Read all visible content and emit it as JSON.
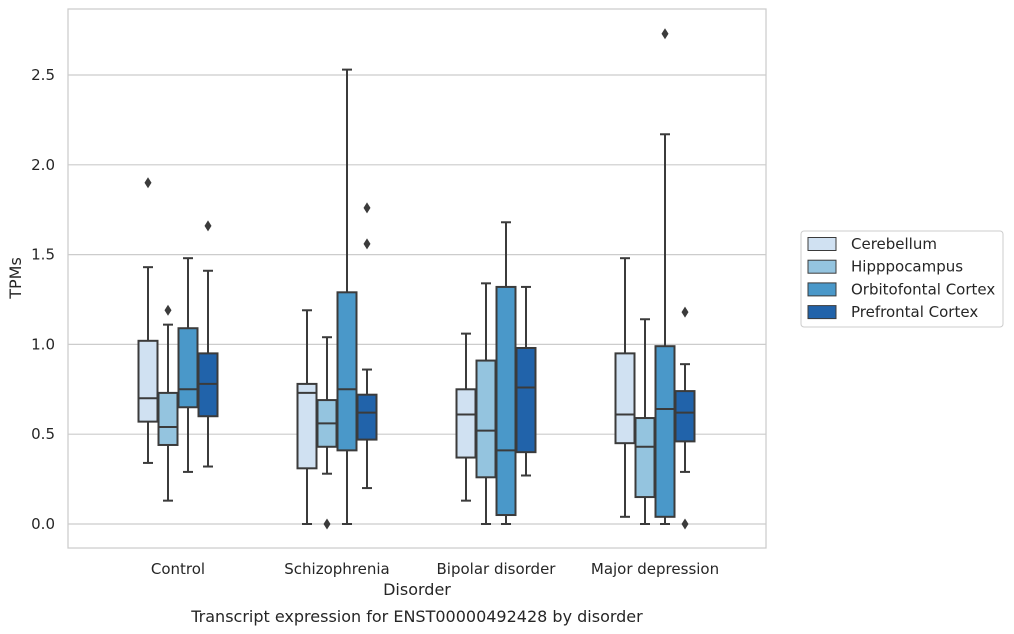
{
  "chart_data": {
    "type": "box",
    "caption": "Transcript expression for ENST00000492428 by disorder",
    "xlabel": "Disorder",
    "ylabel": "TPMs",
    "ylim": [
      -0.13,
      2.87
    ],
    "yticks": [
      0.0,
      0.5,
      1.0,
      1.5,
      2.0,
      2.5
    ],
    "ytick_labels": [
      "0.0",
      "0.5",
      "1.0",
      "1.5",
      "2.0",
      "2.5"
    ],
    "grid": "horizontal",
    "legend_position": "outside-right",
    "categories": [
      "Control",
      "Schizophrenia",
      "Bipolar disorder",
      "Major depression"
    ],
    "series": [
      {
        "name": "Cerebellum",
        "color": "#d0e1f2",
        "boxes": [
          {
            "whisker_low": 0.34,
            "q1": 0.57,
            "median": 0.7,
            "q3": 1.02,
            "whisker_high": 1.43,
            "outliers": [
              1.9
            ]
          },
          {
            "whisker_low": 0.0,
            "q1": 0.31,
            "median": 0.73,
            "q3": 0.78,
            "whisker_high": 1.19,
            "outliers": []
          },
          {
            "whisker_low": 0.13,
            "q1": 0.37,
            "median": 0.61,
            "q3": 0.75,
            "whisker_high": 1.06,
            "outliers": []
          },
          {
            "whisker_low": 0.04,
            "q1": 0.45,
            "median": 0.61,
            "q3": 0.95,
            "whisker_high": 1.48,
            "outliers": []
          }
        ]
      },
      {
        "name": "Hipppocampus",
        "color": "#94c4df",
        "boxes": [
          {
            "whisker_low": 0.13,
            "q1": 0.44,
            "median": 0.54,
            "q3": 0.73,
            "whisker_high": 1.11,
            "outliers": [
              1.19
            ]
          },
          {
            "whisker_low": 0.28,
            "q1": 0.43,
            "median": 0.56,
            "q3": 0.69,
            "whisker_high": 1.04,
            "outliers": [
              0.0
            ]
          },
          {
            "whisker_low": 0.0,
            "q1": 0.26,
            "median": 0.52,
            "q3": 0.91,
            "whisker_high": 1.34,
            "outliers": []
          },
          {
            "whisker_low": 0.0,
            "q1": 0.15,
            "median": 0.43,
            "q3": 0.59,
            "whisker_high": 1.14,
            "outliers": []
          }
        ]
      },
      {
        "name": "Orbitofontal Cortex",
        "color": "#4a98c9",
        "boxes": [
          {
            "whisker_low": 0.29,
            "q1": 0.65,
            "median": 0.75,
            "q3": 1.09,
            "whisker_high": 1.48,
            "outliers": []
          },
          {
            "whisker_low": 0.0,
            "q1": 0.41,
            "median": 0.75,
            "q3": 1.29,
            "whisker_high": 2.53,
            "outliers": []
          },
          {
            "whisker_low": 0.0,
            "q1": 0.05,
            "median": 0.41,
            "q3": 1.32,
            "whisker_high": 1.68,
            "outliers": []
          },
          {
            "whisker_low": 0.0,
            "q1": 0.04,
            "median": 0.64,
            "q3": 0.99,
            "whisker_high": 2.17,
            "outliers": [
              2.73
            ]
          }
        ]
      },
      {
        "name": "Prefrontal Cortex",
        "color": "#2163aa",
        "boxes": [
          {
            "whisker_low": 0.32,
            "q1": 0.6,
            "median": 0.78,
            "q3": 0.95,
            "whisker_high": 1.41,
            "outliers": [
              1.66
            ]
          },
          {
            "whisker_low": 0.2,
            "q1": 0.47,
            "median": 0.62,
            "q3": 0.72,
            "whisker_high": 0.86,
            "outliers": [
              1.56,
              1.76
            ]
          },
          {
            "whisker_low": 0.27,
            "q1": 0.4,
            "median": 0.76,
            "q3": 0.98,
            "whisker_high": 1.32,
            "outliers": []
          },
          {
            "whisker_low": 0.29,
            "q1": 0.46,
            "median": 0.62,
            "q3": 0.74,
            "whisker_high": 0.89,
            "outliers": [
              0.0,
              1.18
            ]
          }
        ]
      }
    ]
  }
}
